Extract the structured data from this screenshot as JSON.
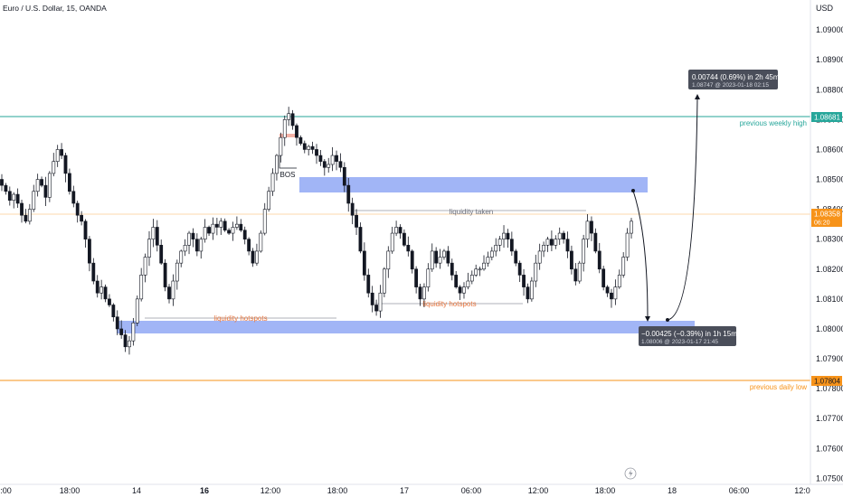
{
  "header": {
    "title": "Euro / U.S. Dollar, 15, OANDA"
  },
  "price_axis": {
    "currency": "USD",
    "ticks": [
      "1.09000",
      "1.08900",
      "1.08800",
      "1.08700",
      "1.08600",
      "1.08500",
      "1.08400",
      "1.08300",
      "1.08200",
      "1.08100",
      "1.08000",
      "1.07900",
      "1.07800",
      "1.07700",
      "1.07600",
      "1.07500"
    ],
    "tag_weekly_high": "1.08681",
    "tag_current": "1.08358",
    "tag_countdown": "06:20",
    "tag_daily_low": "1.07804"
  },
  "time_axis": {
    "labels": [
      "2:00",
      "18:00",
      "14",
      "16",
      "12:00",
      "18:00",
      "17",
      "06:00",
      "12:00",
      "18:00",
      "18",
      "06:00",
      "12:0"
    ]
  },
  "annotations": {
    "previous_weekly_high": "previous weekly high",
    "previous_daily_low": "previous daily low",
    "bos": "BOS",
    "liquidity_taken": "liquidity taken",
    "liquidity_hotspots_left": "liquidity hotspots",
    "liquidity_hotspots_mid": "liquidity hotspots",
    "measure_up_main": "0.00744 (0.69%) in 2h 45m",
    "measure_up_sub": "1.08747 @ 2023-01-18  02:15",
    "measure_down_main": "−0.00425 (−0.39%) in 1h 15m",
    "measure_down_sub": "1.08006 @ 2023-01-17  21:45"
  },
  "colors": {
    "up": "#26a69a",
    "down": "#131722",
    "candle_body": "#131722",
    "weekly_high_line": "#26a69a",
    "daily_low_line": "#f7931a",
    "current_line": "#f7931a",
    "zone_fill": "#90a8f5",
    "hotspot_text": "#e8763f",
    "label_box": "#4a4e5a"
  },
  "chart_data": {
    "type": "candlestick",
    "symbol": "EURUSD",
    "interval": "15",
    "ylim": [
      1.0748,
      1.091
    ],
    "levels": [
      {
        "name": "previous weekly high",
        "value": 1.08681
      },
      {
        "name": "previous daily low",
        "value": 1.07804
      },
      {
        "name": "current price",
        "value": 1.08358
      }
    ],
    "zones": [
      {
        "from": 1.0843,
        "to": 1.08475
      },
      {
        "from": 1.0796,
        "to": 1.0799
      }
    ],
    "close_path": [
      1.0848,
      1.0846,
      1.0843,
      1.0845,
      1.0842,
      1.0838,
      1.0836,
      1.084,
      1.0846,
      1.085,
      1.0848,
      1.0844,
      1.0852,
      1.0856,
      1.086,
      1.0858,
      1.0852,
      1.0846,
      1.0842,
      1.0838,
      1.0836,
      1.083,
      1.0822,
      1.0816,
      1.0812,
      1.0814,
      1.081,
      1.0808,
      1.0804,
      1.08,
      1.0798,
      1.0794,
      1.0796,
      1.0802,
      1.081,
      1.0818,
      1.0824,
      1.083,
      1.0834,
      1.0828,
      1.0822,
      1.0814,
      1.081,
      1.0816,
      1.0822,
      1.0826,
      1.0828,
      1.0832,
      1.083,
      1.0826,
      1.083,
      1.0834,
      1.0832,
      1.0835,
      1.0834,
      1.0836,
      1.0833,
      1.0832,
      1.0834,
      1.0835,
      1.0833,
      1.083,
      1.0826,
      1.0822,
      1.0826,
      1.0832,
      1.084,
      1.0846,
      1.0852,
      1.0858,
      1.0864,
      1.087,
      1.0872,
      1.0868,
      1.0864,
      1.0862,
      1.086,
      1.0861,
      1.086,
      1.0858,
      1.0856,
      1.0854,
      1.0855,
      1.0858,
      1.0856,
      1.0854,
      1.0848,
      1.0842,
      1.0838,
      1.0834,
      1.0826,
      1.0818,
      1.0812,
      1.0808,
      1.0806,
      1.0812,
      1.082,
      1.0826,
      1.0832,
      1.0834,
      1.0832,
      1.0828,
      1.0826,
      1.082,
      1.0814,
      1.081,
      1.0814,
      1.082,
      1.0826,
      1.0822,
      1.0824,
      1.0826,
      1.0822,
      1.0818,
      1.0814,
      1.0812,
      1.0814,
      1.0816,
      1.0818,
      1.082,
      1.082,
      1.0822,
      1.0824,
      1.0826,
      1.0828,
      1.083,
      1.0832,
      1.083,
      1.0826,
      1.0822,
      1.0818,
      1.0814,
      1.081,
      1.0816,
      1.0822,
      1.0826,
      1.0828,
      1.083,
      1.0828,
      1.083,
      1.0832,
      1.083,
      1.0826,
      1.082,
      1.0816,
      1.0822,
      1.083,
      1.0836,
      1.0832,
      1.0826,
      1.082,
      1.0814,
      1.0812,
      1.081,
      1.0814,
      1.0818,
      1.0824,
      1.0832,
      1.0836
    ]
  }
}
